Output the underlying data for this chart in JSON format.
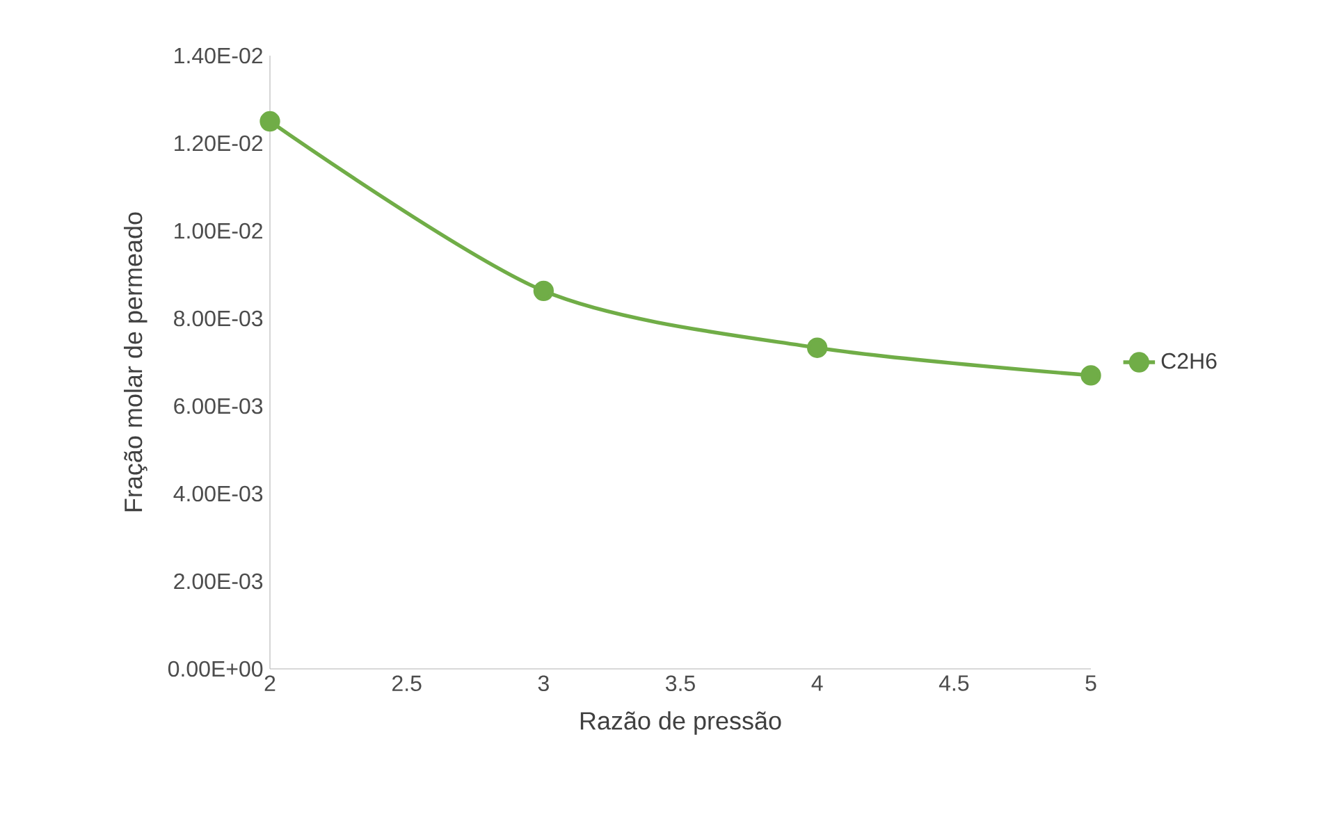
{
  "chart_data": {
    "type": "line",
    "xlabel": "Razão de pressão",
    "ylabel": "Fração molar de permeado",
    "x": [
      2,
      3,
      4,
      5
    ],
    "series": [
      {
        "name": "C2H6",
        "color": "#70ad47",
        "values": [
          0.0125,
          0.00863,
          0.00733,
          0.0067
        ]
      }
    ],
    "xlim": [
      2,
      5
    ],
    "xticks": [
      2,
      2.5,
      3,
      3.5,
      4,
      4.5,
      5
    ],
    "ylim": [
      0,
      0.014
    ],
    "yticks": [
      {
        "value": 0,
        "label": "0.00E+00"
      },
      {
        "value": 0.002,
        "label": "2.00E-03"
      },
      {
        "value": 0.004,
        "label": "4.00E-03"
      },
      {
        "value": 0.006,
        "label": "6.00E-03"
      },
      {
        "value": 0.008,
        "label": "8.00E-03"
      },
      {
        "value": 0.01,
        "label": "1.00E-02"
      },
      {
        "value": 0.012,
        "label": "1.20E-02"
      },
      {
        "value": 0.014,
        "label": "1.40E-02"
      }
    ],
    "legend": "right",
    "marker": "circle",
    "line_style": "solid"
  }
}
